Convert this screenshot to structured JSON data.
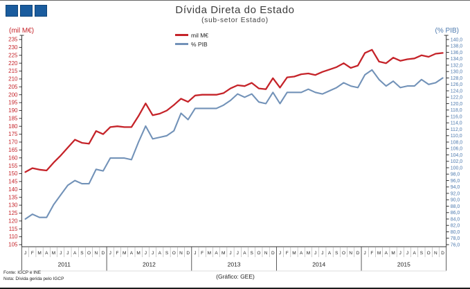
{
  "header": {
    "title": "Dívida Direta do Estado",
    "subtitle": "(sub-setor Estado)"
  },
  "axes": {
    "left_unit": "(mil M€)",
    "right_unit": "(% PIB)"
  },
  "legend": {
    "items": [
      {
        "label": "mil M€",
        "color": "#C52329"
      },
      {
        "label": "% PIB",
        "color": "#7292B8"
      }
    ]
  },
  "footer": {
    "source": "Fonte: IGCP e INE",
    "note": "Nota: Dívida gerida pelo IGCP",
    "credit": "(Gráfico: GEE)"
  },
  "chart_data": {
    "type": "line",
    "title": "Dívida Direta do Estado",
    "subtitle": "(sub-setor Estado)",
    "x_years": [
      "2011",
      "2012",
      "2013",
      "2014",
      "2015"
    ],
    "month_letters": [
      "J",
      "F",
      "M",
      "A",
      "M",
      "J",
      "J",
      "A",
      "S",
      "O",
      "N",
      "D"
    ],
    "left_axis": {
      "label": "(mil M€)",
      "min": 105,
      "max": 235,
      "step": 5,
      "tick_color": "#C52329",
      "format": "integer"
    },
    "right_axis": {
      "label": "(% PIB)",
      "min": 76,
      "max": 140,
      "step": 2,
      "tick_color": "#4C79AE",
      "format": "comma_one_decimal"
    },
    "grid": false,
    "legend_position": "top-center",
    "series": [
      {
        "name": "mil M€",
        "axis": "left",
        "color": "#C52329",
        "values": [
          151,
          153.5,
          152.5,
          152,
          157,
          161.5,
          166.5,
          171.5,
          169.5,
          169,
          177,
          175,
          179.5,
          180,
          179.5,
          179.5,
          186.5,
          194.5,
          187,
          188,
          190,
          193.5,
          197.5,
          195.5,
          199.5,
          200,
          200,
          200,
          201,
          204,
          206,
          205.5,
          207.5,
          204,
          203.5,
          210.5,
          204.5,
          211,
          211.5,
          213,
          213.5,
          212.5,
          214.5,
          216,
          217.5,
          220,
          217,
          218.5,
          226.5,
          228.5,
          221,
          220,
          223.5,
          221.5,
          222.5,
          223,
          225,
          224,
          226,
          226.5
        ]
      },
      {
        "name": "% PIB",
        "axis": "right",
        "color": "#7292B8",
        "values": [
          84,
          85.5,
          84.5,
          84.5,
          88.5,
          91.5,
          94.5,
          96,
          95,
          95,
          99.5,
          99,
          103,
          103,
          103,
          102.5,
          108,
          113,
          109,
          109.5,
          110,
          111.5,
          117,
          115,
          118.5,
          118.5,
          118.5,
          118.5,
          119.5,
          121,
          123,
          122,
          123,
          120.5,
          120,
          123.5,
          120,
          123.5,
          123.5,
          123.5,
          124.5,
          123.5,
          123,
          124,
          125,
          126.5,
          125.5,
          125,
          129,
          130.5,
          127.5,
          125.5,
          127,
          125,
          125.5,
          125.5,
          127.5,
          126,
          126.5,
          128
        ]
      }
    ]
  }
}
